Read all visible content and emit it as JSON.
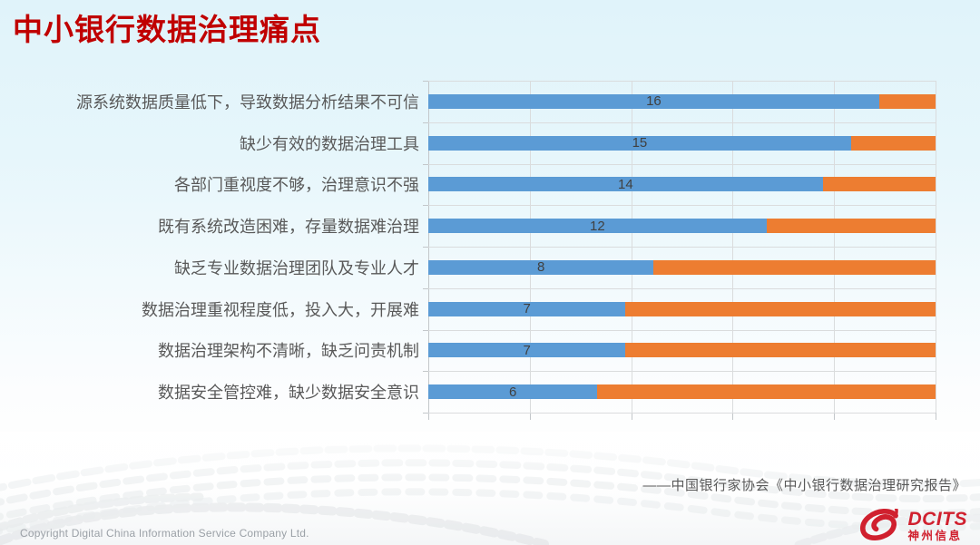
{
  "slide": {
    "title": "中小银行数据治理痛点",
    "source": "——中国银行家协会《中小银行数据治理研究报告》",
    "footer": {
      "copyright": "Copyright  Digital China Information Service Company Ltd."
    },
    "logo": {
      "latin": "DCITS",
      "cn": "神州信息"
    }
  },
  "colors": {
    "title": "#c00000",
    "bar_blue": "#5b9bd5",
    "bar_orange": "#ed7d31",
    "gridline": "#dadcdd",
    "axis": "#c3c7ca",
    "category_label": "#595959",
    "value_label": "#404040",
    "source_text": "#595959",
    "copyright_text": "#9ba1a7",
    "logo_red": "#d0202e",
    "background_top": "#e0f3fa"
  },
  "chart_data": {
    "type": "bar",
    "orientation": "horizontal",
    "stacked": true,
    "title": "中小银行数据治理痛点",
    "categories": [
      "源系统数据质量低下，导致数据分析结果不可信",
      "缺少有效的数据治理工具",
      "各部门重视度不够，治理意识不强",
      "既有系统改造困难，存量数据难治理",
      "缺乏专业数据治理团队及专业人才",
      "数据治理重视程度低，投入大，开展难",
      "数据治理架构不清晰，缺乏问责机制",
      "数据安全管控难，缺少数据安全意识"
    ],
    "series": [
      {
        "name": "blue-segment",
        "color": "#5b9bd5",
        "values": [
          16,
          15,
          14,
          12,
          8,
          7,
          7,
          6
        ]
      },
      {
        "name": "orange-segment",
        "color": "#ed7d31",
        "values": [
          2,
          3,
          4,
          6,
          10,
          11,
          11,
          12
        ]
      }
    ],
    "data_labels": {
      "on_series": "blue-segment",
      "values": [
        16,
        15,
        14,
        12,
        8,
        7,
        7,
        6
      ]
    },
    "bar_total": 18,
    "xlim": [
      0,
      18
    ],
    "x_gridline_positions": [
      0,
      3.6,
      7.2,
      10.8,
      14.4,
      18
    ],
    "axis_value_labels": "none",
    "legend": "none",
    "gridlines": true
  }
}
